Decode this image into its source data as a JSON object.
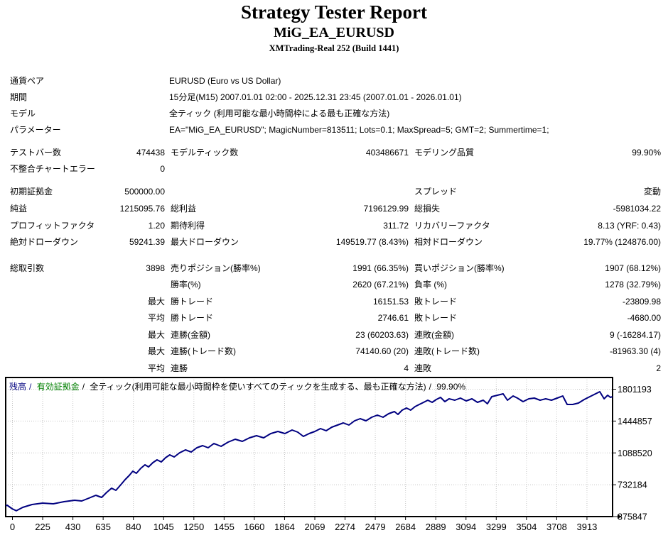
{
  "header": {
    "title": "Strategy Tester Report",
    "expert_name": "MiG_EA_EURUSD",
    "server": "XMTrading-Real 252 (Build 1441)"
  },
  "report": {
    "info_rows": [
      {
        "label": "通貨ペア",
        "value": "EURUSD (Euro vs US Dollar)"
      },
      {
        "label": "期間",
        "value": "15分足(M15) 2007.01.01 02:00 - 2025.12.31 23:45 (2007.01.01 - 2026.01.01)"
      },
      {
        "label": "モデル",
        "value": "全ティック (利用可能な最小時間枠による最も正確な方法)"
      },
      {
        "label": "パラメーター",
        "value": "EA=\"MiG_EA_EURUSD\"; MagicNumber=813511; Lots=0.1; MaxSpread=5; GMT=2; Summertime=1;"
      }
    ],
    "stat_rows": [
      {
        "a": "テストバー数",
        "b": "474438",
        "c": "モデルティック数",
        "d": "403486671",
        "e": "モデリング品質",
        "f": "99.90%"
      },
      {
        "a": "不整合チャートエラー",
        "b": "0",
        "c": "",
        "d": "",
        "e": "",
        "f": ""
      },
      {
        "a": "初期証拠金",
        "b": "500000.00",
        "c": "",
        "d": "",
        "e": "スプレッド",
        "f": "変動"
      },
      {
        "a": "純益",
        "b": "1215095.76",
        "c": "総利益",
        "d": "7196129.99",
        "e": "総損失",
        "f": "-5981034.22"
      },
      {
        "a": "プロフィットファクタ",
        "b": "1.20",
        "c": "期待利得",
        "d": "311.72",
        "e": "リカバリーファクタ",
        "f": "8.13 (YRF: 0.43)"
      },
      {
        "a": "絶対ドローダウン",
        "b": "59241.39",
        "c": "最大ドローダウン",
        "d": "149519.77 (8.43%)",
        "e": "相対ドローダウン",
        "f": "19.77% (124876.00)"
      },
      {
        "a": "総取引数",
        "b": "3898",
        "c": "売りポジション(勝率%)",
        "d": "1991 (66.35%)",
        "e": "買いポジション(勝率%)",
        "f": "1907 (68.12%)"
      },
      {
        "a": "",
        "b": "",
        "c": "勝率(%)",
        "d": "2620 (67.21%)",
        "e": "負率 (%)",
        "f": "1278 (32.79%)"
      },
      {
        "a": "",
        "b": "最大",
        "c": "勝トレード",
        "d": "16151.53",
        "e": "敗トレード",
        "f": "-23809.98"
      },
      {
        "a": "",
        "b": "平均",
        "c": "勝トレード",
        "d": "2746.61",
        "e": "敗トレード",
        "f": "-4680.00"
      },
      {
        "a": "",
        "b": "最大",
        "c": "連勝(金額)",
        "d": "23 (60203.63)",
        "e": "連敗(金額)",
        "f": "9 (-16284.17)"
      },
      {
        "a": "",
        "b": "最大",
        "c": "連勝(トレード数)",
        "d": "74140.60 (20)",
        "e": "連敗(トレード数)",
        "f": "-81963.30 (4)"
      },
      {
        "a": "",
        "b": "平均",
        "c": "連勝",
        "d": "4",
        "e": "連敗",
        "f": "2"
      }
    ]
  },
  "chart": {
    "legend": {
      "balance": "残高",
      "sep": "/",
      "equity": "有効証拠金",
      "model": "全ティック(利用可能な最小時間枠を使いすべてのティックを生成する、最も正確な方法)",
      "quality": "99.90%"
    },
    "balance_color": "#000080",
    "equity_color": "#008000",
    "grid_color": "#c6c6c6",
    "axis_color": "#000000",
    "background": "#ffffff"
  },
  "chart_data": {
    "type": "line",
    "title": "残高 / 有効証拠金 / 全ティック(利用可能な最小時間枠を使いすべてのティックを生成する、最も正確な方法) / 99.90%",
    "xlabel": "",
    "ylabel": "",
    "x_ticks": [
      0,
      225,
      430,
      635,
      840,
      1045,
      1250,
      1455,
      1660,
      1864,
      2069,
      2274,
      2479,
      2684,
      2889,
      3094,
      3299,
      3504,
      3708,
      3913
    ],
    "y_ticks": [
      375847,
      732184,
      1088520,
      1444857,
      1801193
    ],
    "xlim": [
      0,
      3898
    ],
    "ylim": [
      375847,
      1931000
    ],
    "grid": true,
    "legend_position": "top-left",
    "series": [
      {
        "name": "残高",
        "color": "#000080",
        "points": [
          [
            0,
            500000
          ],
          [
            5,
            502900
          ],
          [
            37,
            463200
          ],
          [
            64,
            440800
          ],
          [
            105,
            479100
          ],
          [
            165,
            510800
          ],
          [
            233,
            526700
          ],
          [
            302,
            518800
          ],
          [
            371,
            542600
          ],
          [
            439,
            558500
          ],
          [
            485,
            550500
          ],
          [
            531,
            582300
          ],
          [
            576,
            614000
          ],
          [
            613,
            590200
          ],
          [
            645,
            645800
          ],
          [
            677,
            693400
          ],
          [
            705,
            669600
          ],
          [
            737,
            733100
          ],
          [
            764,
            788700
          ],
          [
            791,
            836300
          ],
          [
            814,
            883900
          ],
          [
            837,
            860100
          ],
          [
            865,
            915700
          ],
          [
            892,
            955400
          ],
          [
            915,
            931600
          ],
          [
            943,
            979200
          ],
          [
            970,
            1011000
          ],
          [
            997,
            987200
          ],
          [
            1025,
            1034800
          ],
          [
            1052,
            1066500
          ],
          [
            1080,
            1042700
          ],
          [
            1116,
            1090300
          ],
          [
            1153,
            1122100
          ],
          [
            1190,
            1098300
          ],
          [
            1226,
            1145900
          ],
          [
            1263,
            1169700
          ],
          [
            1299,
            1145900
          ],
          [
            1336,
            1193500
          ],
          [
            1382,
            1161800
          ],
          [
            1428,
            1209400
          ],
          [
            1473,
            1241200
          ],
          [
            1519,
            1217400
          ],
          [
            1565,
            1257100
          ],
          [
            1610,
            1280900
          ],
          [
            1656,
            1257100
          ],
          [
            1702,
            1304700
          ],
          [
            1748,
            1328500
          ],
          [
            1793,
            1304700
          ],
          [
            1839,
            1344400
          ],
          [
            1876,
            1320600
          ],
          [
            1912,
            1273000
          ],
          [
            1949,
            1304700
          ],
          [
            1986,
            1328500
          ],
          [
            2022,
            1360300
          ],
          [
            2059,
            1336500
          ],
          [
            2095,
            1376200
          ],
          [
            2132,
            1400000
          ],
          [
            2169,
            1423800
          ],
          [
            2205,
            1400000
          ],
          [
            2242,
            1447700
          ],
          [
            2278,
            1471500
          ],
          [
            2315,
            1447700
          ],
          [
            2352,
            1487400
          ],
          [
            2388,
            1511200
          ],
          [
            2425,
            1487400
          ],
          [
            2461,
            1527100
          ],
          [
            2498,
            1550900
          ],
          [
            2521,
            1519100
          ],
          [
            2548,
            1566800
          ],
          [
            2576,
            1590600
          ],
          [
            2603,
            1566800
          ],
          [
            2631,
            1606500
          ],
          [
            2658,
            1630300
          ],
          [
            2686,
            1654100
          ],
          [
            2713,
            1677900
          ],
          [
            2741,
            1654100
          ],
          [
            2768,
            1685800
          ],
          [
            2795,
            1709600
          ],
          [
            2823,
            1662000
          ],
          [
            2850,
            1693700
          ],
          [
            2887,
            1677900
          ],
          [
            2923,
            1701700
          ],
          [
            2960,
            1670000
          ],
          [
            2997,
            1693700
          ],
          [
            3033,
            1654100
          ],
          [
            3070,
            1677900
          ],
          [
            3097,
            1638200
          ],
          [
            3125,
            1717500
          ],
          [
            3161,
            1733400
          ],
          [
            3198,
            1749300
          ],
          [
            3226,
            1677900
          ],
          [
            3262,
            1725400
          ],
          [
            3290,
            1701700
          ],
          [
            3326,
            1662000
          ],
          [
            3363,
            1693700
          ],
          [
            3399,
            1701700
          ],
          [
            3436,
            1677900
          ],
          [
            3472,
            1693700
          ],
          [
            3509,
            1677900
          ],
          [
            3546,
            1701700
          ],
          [
            3582,
            1725400
          ],
          [
            3610,
            1630300
          ],
          [
            3646,
            1630300
          ],
          [
            3683,
            1646100
          ],
          [
            3720,
            1685800
          ],
          [
            3756,
            1717500
          ],
          [
            3793,
            1749300
          ],
          [
            3820,
            1773100
          ],
          [
            3848,
            1693700
          ],
          [
            3871,
            1733400
          ],
          [
            3889,
            1709600
          ],
          [
            3898,
            1715096
          ]
        ]
      }
    ]
  }
}
